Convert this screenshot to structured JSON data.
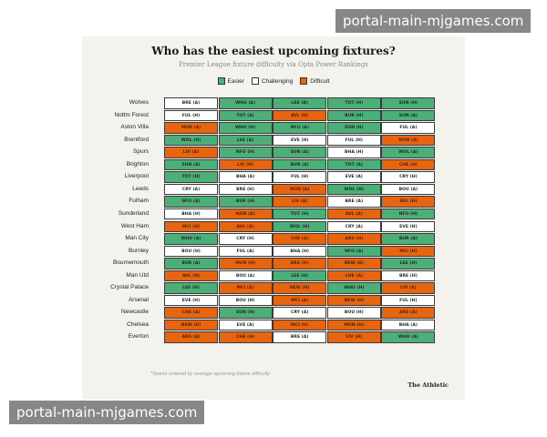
{
  "watermark_text": "portal-main-mjgames.com",
  "chart_data": {
    "type": "table",
    "title": "Who has the easiest upcoming fixtures?",
    "subtitle": "Premier League fixture difficulty via Opta Power Rankings",
    "legend": [
      {
        "key": "easier",
        "label": "Easier",
        "color": "#4caf78"
      },
      {
        "key": "challenging",
        "label": "Challenging",
        "color": "#ffffff"
      },
      {
        "key": "difficult",
        "label": "Difficult",
        "color": "#e8650f"
      }
    ],
    "teams": [
      {
        "name": "Wolves",
        "fixtures": [
          [
            "BRE (A)",
            "c"
          ],
          [
            "WHU (A)",
            "e"
          ],
          [
            "LEE (A)",
            "e"
          ],
          [
            "TOT (H)",
            "e"
          ],
          [
            "SUN (H)",
            "e"
          ]
        ]
      },
      {
        "name": "Nottm Forest",
        "fixtures": [
          [
            "FUL (H)",
            "c"
          ],
          [
            "TOT (A)",
            "e"
          ],
          [
            "AVL (H)",
            "d"
          ],
          [
            "BUR (H)",
            "e"
          ],
          [
            "SUN (A)",
            "e"
          ]
        ]
      },
      {
        "name": "Aston Villa",
        "fixtures": [
          [
            "MUN (A)",
            "d"
          ],
          [
            "WHU (H)",
            "e"
          ],
          [
            "NFO (A)",
            "e"
          ],
          [
            "SUN (H)",
            "e"
          ],
          [
            "FUL (A)",
            "c"
          ]
        ]
      },
      {
        "name": "Brentford",
        "fixtures": [
          [
            "WOL (H)",
            "e"
          ],
          [
            "LEE (A)",
            "e"
          ],
          [
            "EVE (H)",
            "c"
          ],
          [
            "FUL (H)",
            "c"
          ],
          [
            "MUN (A)",
            "d"
          ]
        ]
      },
      {
        "name": "Spurs",
        "fixtures": [
          [
            "LIV (A)",
            "d"
          ],
          [
            "NFO (H)",
            "e"
          ],
          [
            "SUN (A)",
            "e"
          ],
          [
            "BHA (H)",
            "c"
          ],
          [
            "WOL (A)",
            "e"
          ]
        ]
      },
      {
        "name": "Brighton",
        "fixtures": [
          [
            "SUN (A)",
            "e"
          ],
          [
            "LIV (H)",
            "d"
          ],
          [
            "BUR (A)",
            "e"
          ],
          [
            "TOT (A)",
            "e"
          ],
          [
            "CHE (H)",
            "d"
          ]
        ]
      },
      {
        "name": "Liverpool",
        "fixtures": [
          [
            "TOT (H)",
            "e"
          ],
          [
            "BHA (A)",
            "c"
          ],
          [
            "FUL (H)",
            "c"
          ],
          [
            "EVE (A)",
            "c"
          ],
          [
            "CRY (H)",
            "c"
          ]
        ]
      },
      {
        "name": "Leeds",
        "fixtures": [
          [
            "CRY (A)",
            "c"
          ],
          [
            "BRE (H)",
            "c"
          ],
          [
            "MUN (A)",
            "d"
          ],
          [
            "WOL (H)",
            "e"
          ],
          [
            "BOU (A)",
            "c"
          ]
        ]
      },
      {
        "name": "Fulham",
        "fixtures": [
          [
            "NFO (A)",
            "e"
          ],
          [
            "BUR (H)",
            "e"
          ],
          [
            "LIV (A)",
            "d"
          ],
          [
            "BRE (A)",
            "c"
          ],
          [
            "AVL (H)",
            "d"
          ]
        ]
      },
      {
        "name": "Sunderland",
        "fixtures": [
          [
            "BHA (H)",
            "c"
          ],
          [
            "NEW (A)",
            "d"
          ],
          [
            "TOT (H)",
            "e"
          ],
          [
            "AVL (A)",
            "d"
          ],
          [
            "NFO (H)",
            "e"
          ]
        ]
      },
      {
        "name": "West Ham",
        "fixtures": [
          [
            "MCI (H)",
            "d"
          ],
          [
            "AVL (A)",
            "d"
          ],
          [
            "WOL (H)",
            "e"
          ],
          [
            "CRY (A)",
            "c"
          ],
          [
            "EVE (H)",
            "c"
          ]
        ]
      },
      {
        "name": "Man City",
        "fixtures": [
          [
            "WHU (A)",
            "e"
          ],
          [
            "CRY (H)",
            "c"
          ],
          [
            "CHE (A)",
            "d"
          ],
          [
            "ARS (H)",
            "d"
          ],
          [
            "BUR (A)",
            "e"
          ]
        ]
      },
      {
        "name": "Burnley",
        "fixtures": [
          [
            "BOU (H)",
            "c"
          ],
          [
            "FUL (A)",
            "c"
          ],
          [
            "BHA (H)",
            "c"
          ],
          [
            "NFO (A)",
            "e"
          ],
          [
            "MCI (H)",
            "d"
          ]
        ]
      },
      {
        "name": "Bournemouth",
        "fixtures": [
          [
            "BUR (A)",
            "e"
          ],
          [
            "MUN (H)",
            "d"
          ],
          [
            "ARS (H)",
            "d"
          ],
          [
            "NEW (A)",
            "d"
          ],
          [
            "LEE (H)",
            "e"
          ]
        ]
      },
      {
        "name": "Man Utd",
        "fixtures": [
          [
            "AVL (H)",
            "d"
          ],
          [
            "BOU (A)",
            "c"
          ],
          [
            "LEE (H)",
            "e"
          ],
          [
            "CHE (A)",
            "d"
          ],
          [
            "BRE (H)",
            "c"
          ]
        ]
      },
      {
        "name": "Crystal Palace",
        "fixtures": [
          [
            "LEE (H)",
            "e"
          ],
          [
            "MCI (A)",
            "d"
          ],
          [
            "NEW (H)",
            "d"
          ],
          [
            "WHU (H)",
            "e"
          ],
          [
            "LIV (A)",
            "d"
          ]
        ]
      },
      {
        "name": "Arsenal",
        "fixtures": [
          [
            "EVE (H)",
            "c"
          ],
          [
            "BOU (H)",
            "c"
          ],
          [
            "MCI (A)",
            "d"
          ],
          [
            "NEW (H)",
            "d"
          ],
          [
            "FUL (H)",
            "c"
          ]
        ]
      },
      {
        "name": "Newcastle",
        "fixtures": [
          [
            "CHE (A)",
            "d"
          ],
          [
            "SUN (H)",
            "e"
          ],
          [
            "CRY (A)",
            "c"
          ],
          [
            "BOU (H)",
            "c"
          ],
          [
            "ARS (A)",
            "d"
          ]
        ]
      },
      {
        "name": "Chelsea",
        "fixtures": [
          [
            "NEW (H)",
            "d"
          ],
          [
            "EVE (A)",
            "c"
          ],
          [
            "MCI (H)",
            "d"
          ],
          [
            "MUN (H)",
            "d"
          ],
          [
            "BHA (A)",
            "c"
          ]
        ]
      },
      {
        "name": "Everton",
        "fixtures": [
          [
            "ARS (A)",
            "d"
          ],
          [
            "CHE (H)",
            "d"
          ],
          [
            "BRE (A)",
            "c"
          ],
          [
            "LIV (H)",
            "d"
          ],
          [
            "WHU (A)",
            "e"
          ]
        ]
      }
    ],
    "footnote": "*Teams ordered by average upcoming fixture difficulty",
    "source": "The Athletic"
  }
}
